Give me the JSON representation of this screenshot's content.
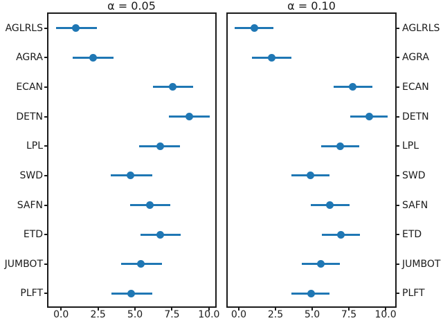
{
  "figure": {
    "background": "#ffffff",
    "frame_color": "#1a1a1a",
    "accent_color": "#1f77b4"
  },
  "chart_data": [
    {
      "type": "scatter",
      "variant": "horizontal-dot-plot-with-error-bars",
      "title": "α = 0.05",
      "categories": [
        "AGLRLS",
        "AGRA",
        "ECAN",
        "DETN",
        "LPL",
        "SWD",
        "SAFN",
        "ETD",
        "JUMBOT",
        "PLFT"
      ],
      "values": [
        1.0,
        2.15,
        7.55,
        8.65,
        6.7,
        4.7,
        6.0,
        6.7,
        5.4,
        4.75
      ],
      "ci_low": [
        -0.35,
        0.8,
        6.2,
        7.3,
        5.3,
        3.35,
        4.65,
        5.35,
        4.05,
        3.4
      ],
      "ci_high": [
        2.4,
        3.55,
        8.95,
        10.05,
        8.05,
        6.15,
        7.4,
        8.1,
        6.8,
        6.15
      ],
      "xticks": [
        0.0,
        2.5,
        5.0,
        7.5,
        10.0
      ],
      "xtick_labels": [
        "0.0",
        "2.5",
        "5.0",
        "7.5",
        "10.0"
      ],
      "xlim": [
        -0.9,
        10.45
      ],
      "ylabels_side": "left",
      "grid": false,
      "marker_color": "#1f77b4"
    },
    {
      "type": "scatter",
      "variant": "horizontal-dot-plot-with-error-bars",
      "title": "α = 0.10",
      "categories": [
        "AGLRLS",
        "AGRA",
        "ECAN",
        "DETN",
        "LPL",
        "SWD",
        "SAFN",
        "ETD",
        "JUMBOT",
        "PLFT"
      ],
      "values": [
        1.05,
        2.25,
        7.75,
        8.9,
        6.9,
        4.9,
        6.2,
        6.95,
        5.6,
        4.95
      ],
      "ci_low": [
        -0.3,
        0.9,
        6.45,
        7.6,
        5.6,
        3.6,
        4.9,
        5.65,
        4.3,
        3.6
      ],
      "ci_high": [
        2.35,
        3.6,
        9.1,
        10.15,
        8.2,
        6.2,
        7.55,
        8.25,
        6.9,
        6.2
      ],
      "xticks": [
        0.0,
        2.5,
        5.0,
        7.5,
        10.0
      ],
      "xtick_labels": [
        "0.0",
        "2.5",
        "5.0",
        "7.5",
        "10.0"
      ],
      "xlim": [
        -0.8,
        10.68
      ],
      "ylabels_side": "right",
      "grid": false,
      "marker_color": "#1f77b4"
    }
  ]
}
